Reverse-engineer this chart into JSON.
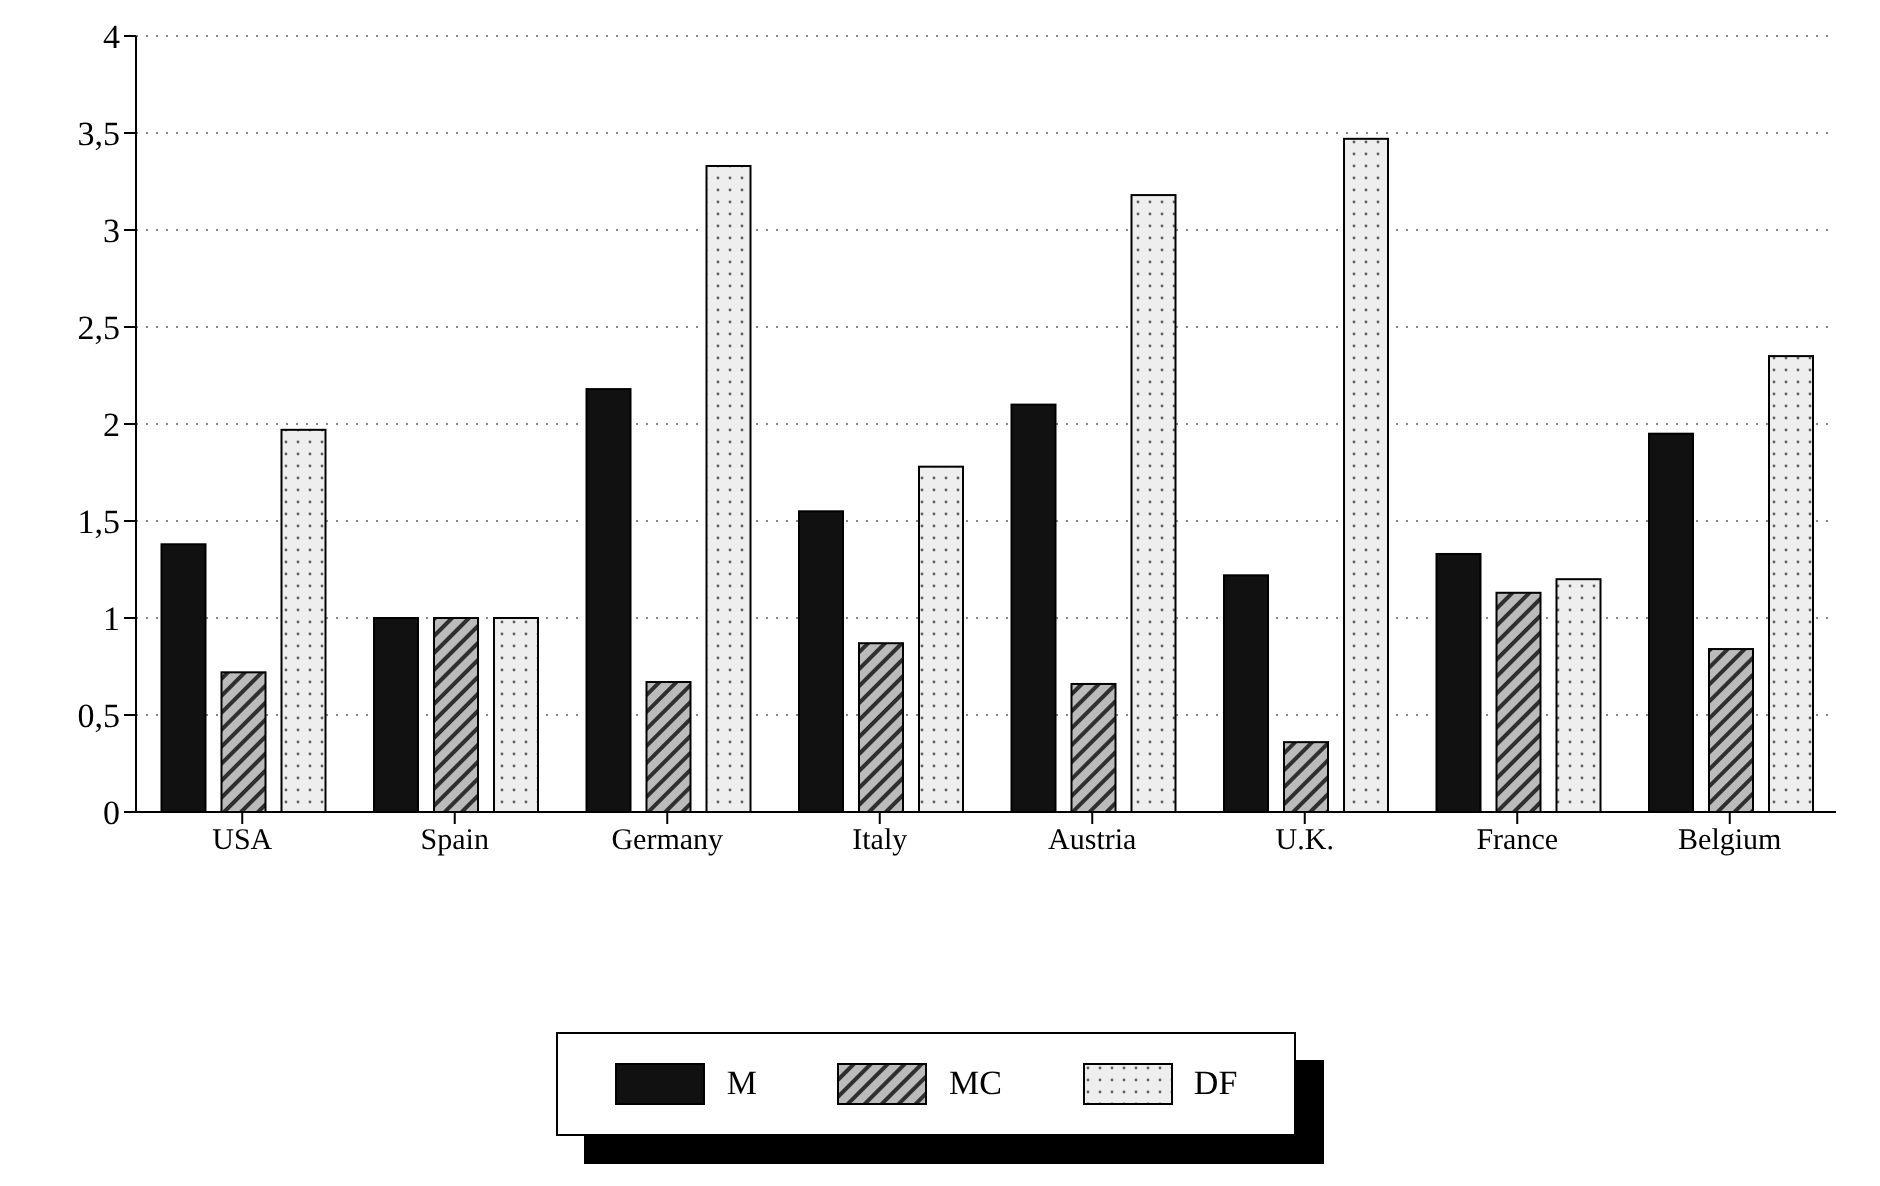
{
  "chart_data": {
    "type": "bar",
    "categories": [
      "USA",
      "Spain",
      "Germany",
      "Italy",
      "Austria",
      "U.K.",
      "France",
      "Belgium"
    ],
    "series": [
      {
        "name": "M",
        "color": "#111111",
        "values": [
          1.38,
          1.0,
          2.18,
          1.55,
          2.1,
          1.22,
          1.33,
          1.95
        ]
      },
      {
        "name": "MC",
        "color": "#bbbbbb",
        "values": [
          0.72,
          1.0,
          0.67,
          0.87,
          0.66,
          0.36,
          1.13,
          0.84
        ]
      },
      {
        "name": "DF",
        "color": "#eeeeee",
        "values": [
          1.97,
          1.0,
          3.33,
          1.78,
          3.18,
          3.47,
          1.2,
          2.35
        ]
      }
    ],
    "ylim": [
      0,
      4
    ],
    "yticks": [
      0,
      {
        "value": 0.5,
        "label": "0,5"
      },
      1,
      {
        "value": 1.5,
        "label": "1,5"
      },
      2,
      {
        "value": 2.5,
        "label": "2,5"
      },
      3,
      {
        "value": 3.5,
        "label": "3,5"
      },
      4
    ],
    "grid": "y",
    "legend": "bottom"
  }
}
